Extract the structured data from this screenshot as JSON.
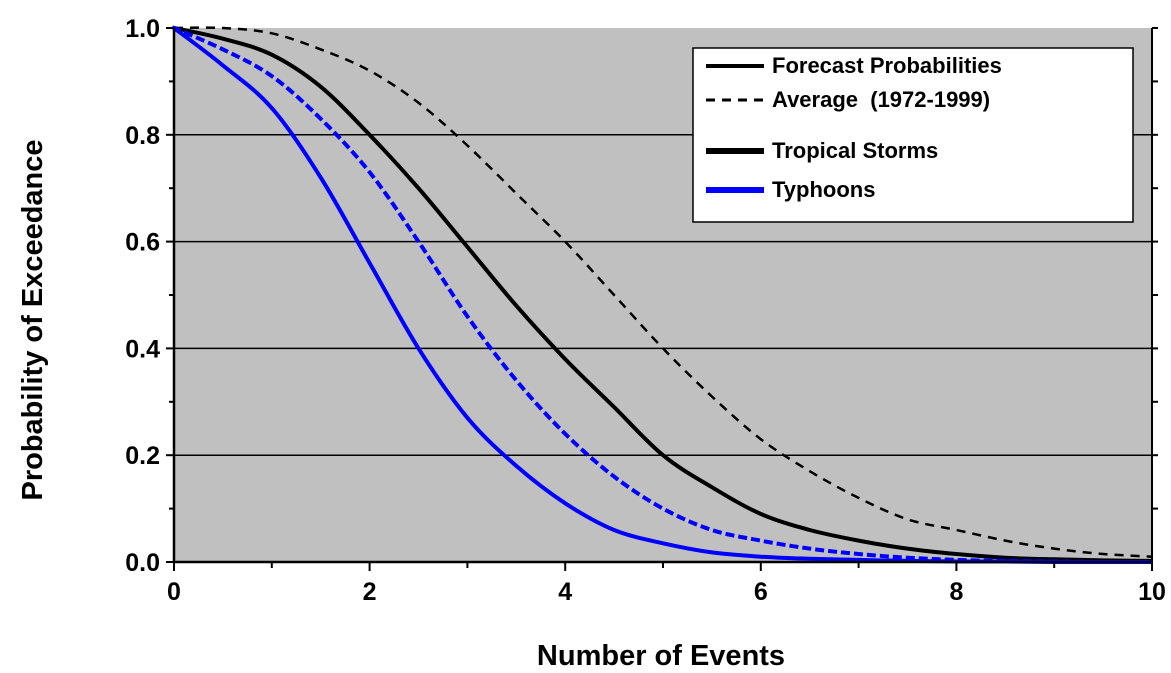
{
  "chart_data": {
    "type": "line",
    "xlabel": "Number of Events",
    "ylabel": "Probability of Exceedance",
    "xlim": [
      0,
      10
    ],
    "ylim": [
      0,
      1.0
    ],
    "x_ticks": [
      "0",
      "2",
      "4",
      "6",
      "8",
      "10"
    ],
    "y_ticks": [
      "0.0",
      "0.2",
      "0.4",
      "0.6",
      "0.8",
      "1.0"
    ],
    "grid": "horizontal",
    "plot_background": "#c0c0c0",
    "legend_position": "top-right",
    "legend": [
      {
        "label": "Forecast Probabilities",
        "style": "solid",
        "color": "#000000"
      },
      {
        "label": "Average  (1972-1999)",
        "style": "dashed",
        "color": "#000000"
      },
      {
        "label": "Tropical Storms",
        "style": "solid-thick",
        "color": "#000000"
      },
      {
        "label": "Typhoons",
        "style": "solid-thick",
        "color": "#0000ff"
      }
    ],
    "series": [
      {
        "name": "Tropical Storms",
        "kind": "Forecast Probabilities",
        "color": "#000000",
        "dash": "solid",
        "x": [
          0,
          0.5,
          1,
          1.5,
          2,
          2.5,
          3,
          3.5,
          4,
          4.5,
          5,
          5.5,
          6,
          6.5,
          7,
          7.5,
          8,
          8.5,
          9,
          9.5,
          10
        ],
        "y": [
          1.0,
          0.98,
          0.95,
          0.89,
          0.8,
          0.7,
          0.59,
          0.48,
          0.38,
          0.29,
          0.2,
          0.14,
          0.09,
          0.06,
          0.04,
          0.025,
          0.015,
          0.008,
          0.005,
          0.003,
          0.002
        ]
      },
      {
        "name": "Tropical Storms",
        "kind": "Average  (1972-1999)",
        "color": "#000000",
        "dash": "dashed",
        "x": [
          0,
          0.5,
          1,
          1.5,
          2,
          2.5,
          3,
          3.5,
          4,
          4.5,
          5,
          5.5,
          6,
          6.5,
          7,
          7.5,
          8,
          8.5,
          9,
          9.5,
          10
        ],
        "y": [
          1.0,
          1.0,
          0.99,
          0.96,
          0.92,
          0.86,
          0.78,
          0.69,
          0.6,
          0.5,
          0.4,
          0.31,
          0.23,
          0.17,
          0.12,
          0.08,
          0.06,
          0.04,
          0.025,
          0.015,
          0.01
        ]
      },
      {
        "name": "Typhoons",
        "kind": "Forecast Probabilities",
        "color": "#0000ff",
        "dash": "solid",
        "x": [
          0,
          0.5,
          1,
          1.5,
          2,
          2.5,
          3,
          3.5,
          4,
          4.5,
          5,
          5.5,
          6,
          6.5,
          7,
          7.5,
          8,
          8.5,
          9,
          9.5,
          10
        ],
        "y": [
          1.0,
          0.93,
          0.85,
          0.72,
          0.56,
          0.4,
          0.27,
          0.18,
          0.11,
          0.06,
          0.035,
          0.018,
          0.01,
          0.006,
          0.004,
          0.002,
          0.001,
          0.001,
          0.0,
          0.0,
          0.0
        ]
      },
      {
        "name": "Typhoons",
        "kind": "Average  (1972-1999)",
        "color": "#0000ff",
        "dash": "dotted",
        "x": [
          0,
          0.5,
          1,
          1.5,
          2,
          2.5,
          3,
          3.5,
          4,
          4.5,
          5,
          5.5,
          6,
          6.5,
          7,
          7.5,
          8,
          8.5,
          9,
          9.5,
          10
        ],
        "y": [
          1.0,
          0.96,
          0.91,
          0.83,
          0.73,
          0.6,
          0.46,
          0.34,
          0.24,
          0.16,
          0.1,
          0.06,
          0.04,
          0.025,
          0.015,
          0.008,
          0.004,
          0.002,
          0.001,
          0.0,
          0.0
        ]
      }
    ]
  }
}
